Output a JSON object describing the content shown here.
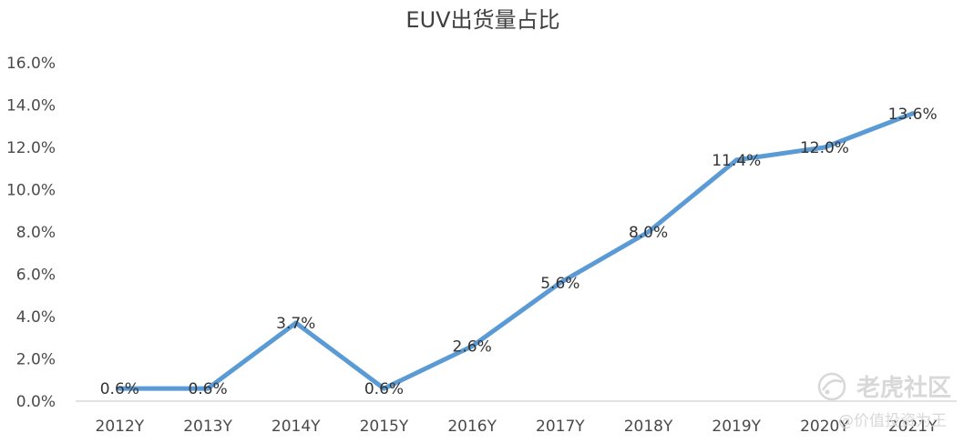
{
  "chart_data": {
    "type": "line",
    "title": "EUV出货量占比",
    "xlabel": "",
    "ylabel": "",
    "categories": [
      "2012Y",
      "2013Y",
      "2014Y",
      "2015Y",
      "2016Y",
      "2017Y",
      "2018Y",
      "2019Y",
      "2020Y",
      "2021Y"
    ],
    "series": [
      {
        "values": [
          0.6,
          0.6,
          3.7,
          0.6,
          2.6,
          5.6,
          8.0,
          11.4,
          12.0,
          13.6
        ],
        "labels": [
          "0.6%",
          "0.6%",
          "3.7%",
          "0.6%",
          "2.6%",
          "5.6%",
          "8.0%",
          "11.4%",
          "12.0%",
          "13.6%"
        ],
        "color": "#5b9bd5"
      }
    ],
    "ylim": [
      0,
      16
    ],
    "yticks": [
      "0.0%",
      "2.0%",
      "4.0%",
      "6.0%",
      "8.0%",
      "10.0%",
      "12.0%",
      "14.0%",
      "16.0%"
    ],
    "grid": false,
    "legend": "none"
  },
  "watermark": {
    "brand": "老虎社区",
    "author": "@价值投资为王",
    "icon": "tiger-logo-icon"
  },
  "colors": {
    "line": "#5b9bd5",
    "axis": "#d9d9d9",
    "text": "#404040",
    "watermark": "#d8d8d8"
  }
}
